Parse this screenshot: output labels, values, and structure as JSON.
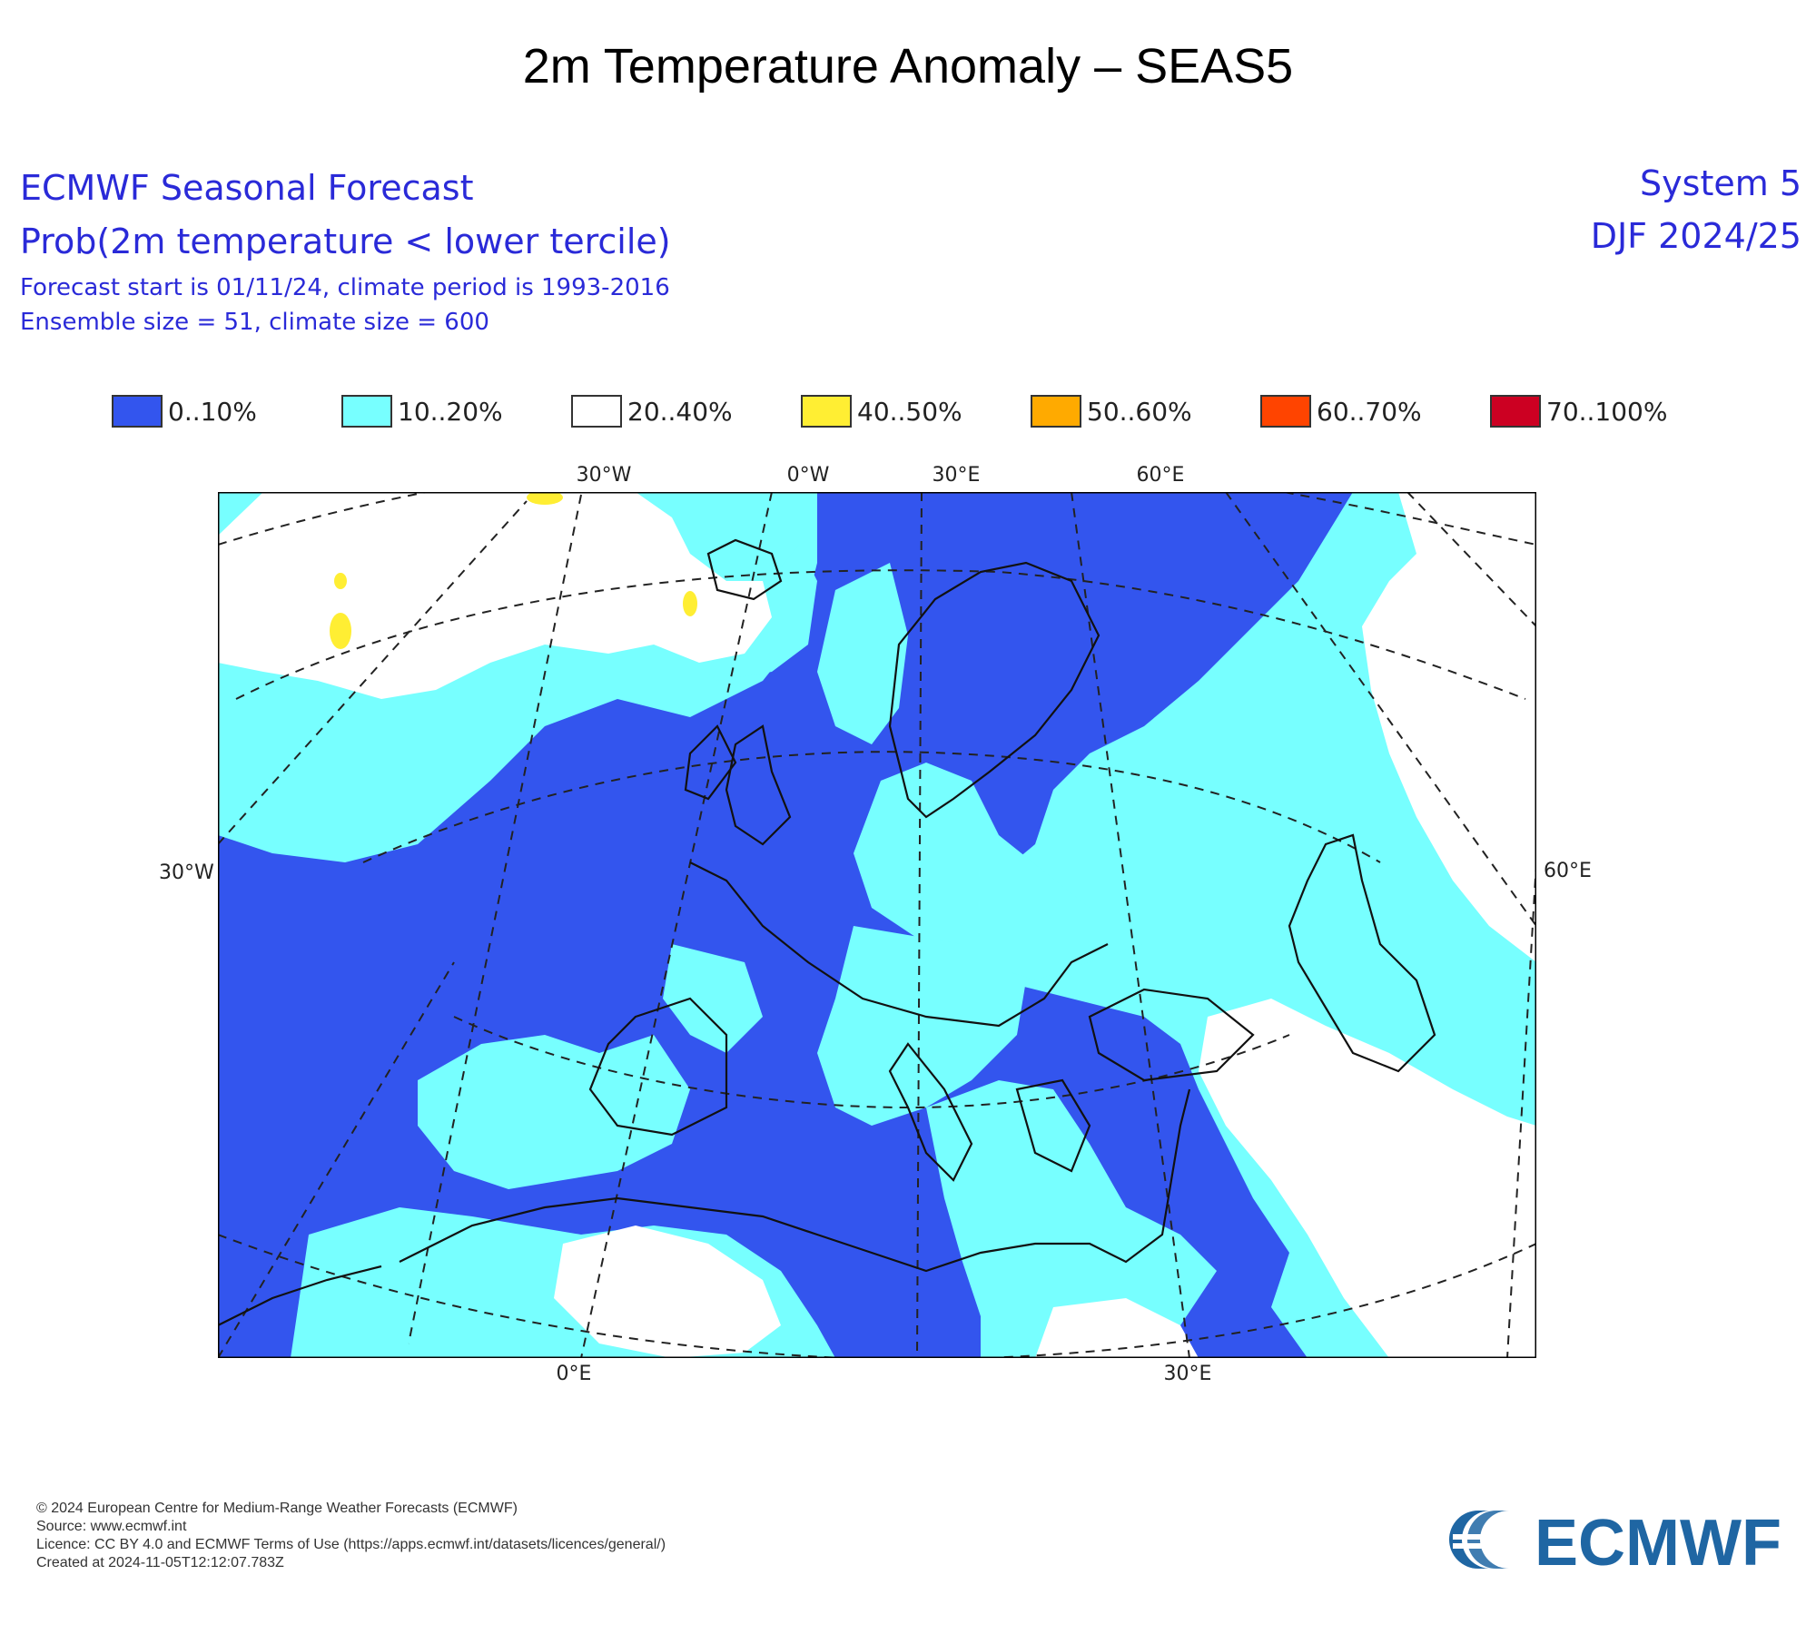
{
  "title": "2m Temperature Anomaly – SEAS5",
  "header": {
    "line1": "ECMWF Seasonal Forecast",
    "line2": "Prob(2m temperature < lower tercile)",
    "line3": "Forecast start is 01/11/24, climate period is 1993-2016",
    "line4": "Ensemble size = 51, climate size = 600",
    "system": "System 5",
    "season": "DJF 2024/25"
  },
  "legend": [
    {
      "label": "0..10%",
      "color": "#3355ee"
    },
    {
      "label": "10..20%",
      "color": "#77ffff"
    },
    {
      "label": "20..40%",
      "color": "#ffffff"
    },
    {
      "label": "40..50%",
      "color": "#ffee33"
    },
    {
      "label": "50..60%",
      "color": "#ffaa00"
    },
    {
      "label": "60..70%",
      "color": "#ff4400"
    },
    {
      "label": "70..100%",
      "color": "#cc0022"
    }
  ],
  "map": {
    "top_ticks": [
      "30°W",
      "0°W",
      "30°E",
      "60°E"
    ],
    "left_tick": "30°W",
    "right_tick": "60°E",
    "bottom_ticks": [
      "0°E",
      "30°E"
    ]
  },
  "footer": {
    "copyright": "© 2024 European Centre for Medium-Range Weather Forecasts (ECMWF)",
    "source": "Source: www.ecmwf.int",
    "licence": "Licence: CC BY 4.0 and ECMWF Terms of Use (https://apps.ecmwf.int/datasets/licences/general/)",
    "created": "Created at 2024-11-05T12:12:07.783Z"
  },
  "logo_text": "ECMWF",
  "logo_color": "#1f66a3"
}
